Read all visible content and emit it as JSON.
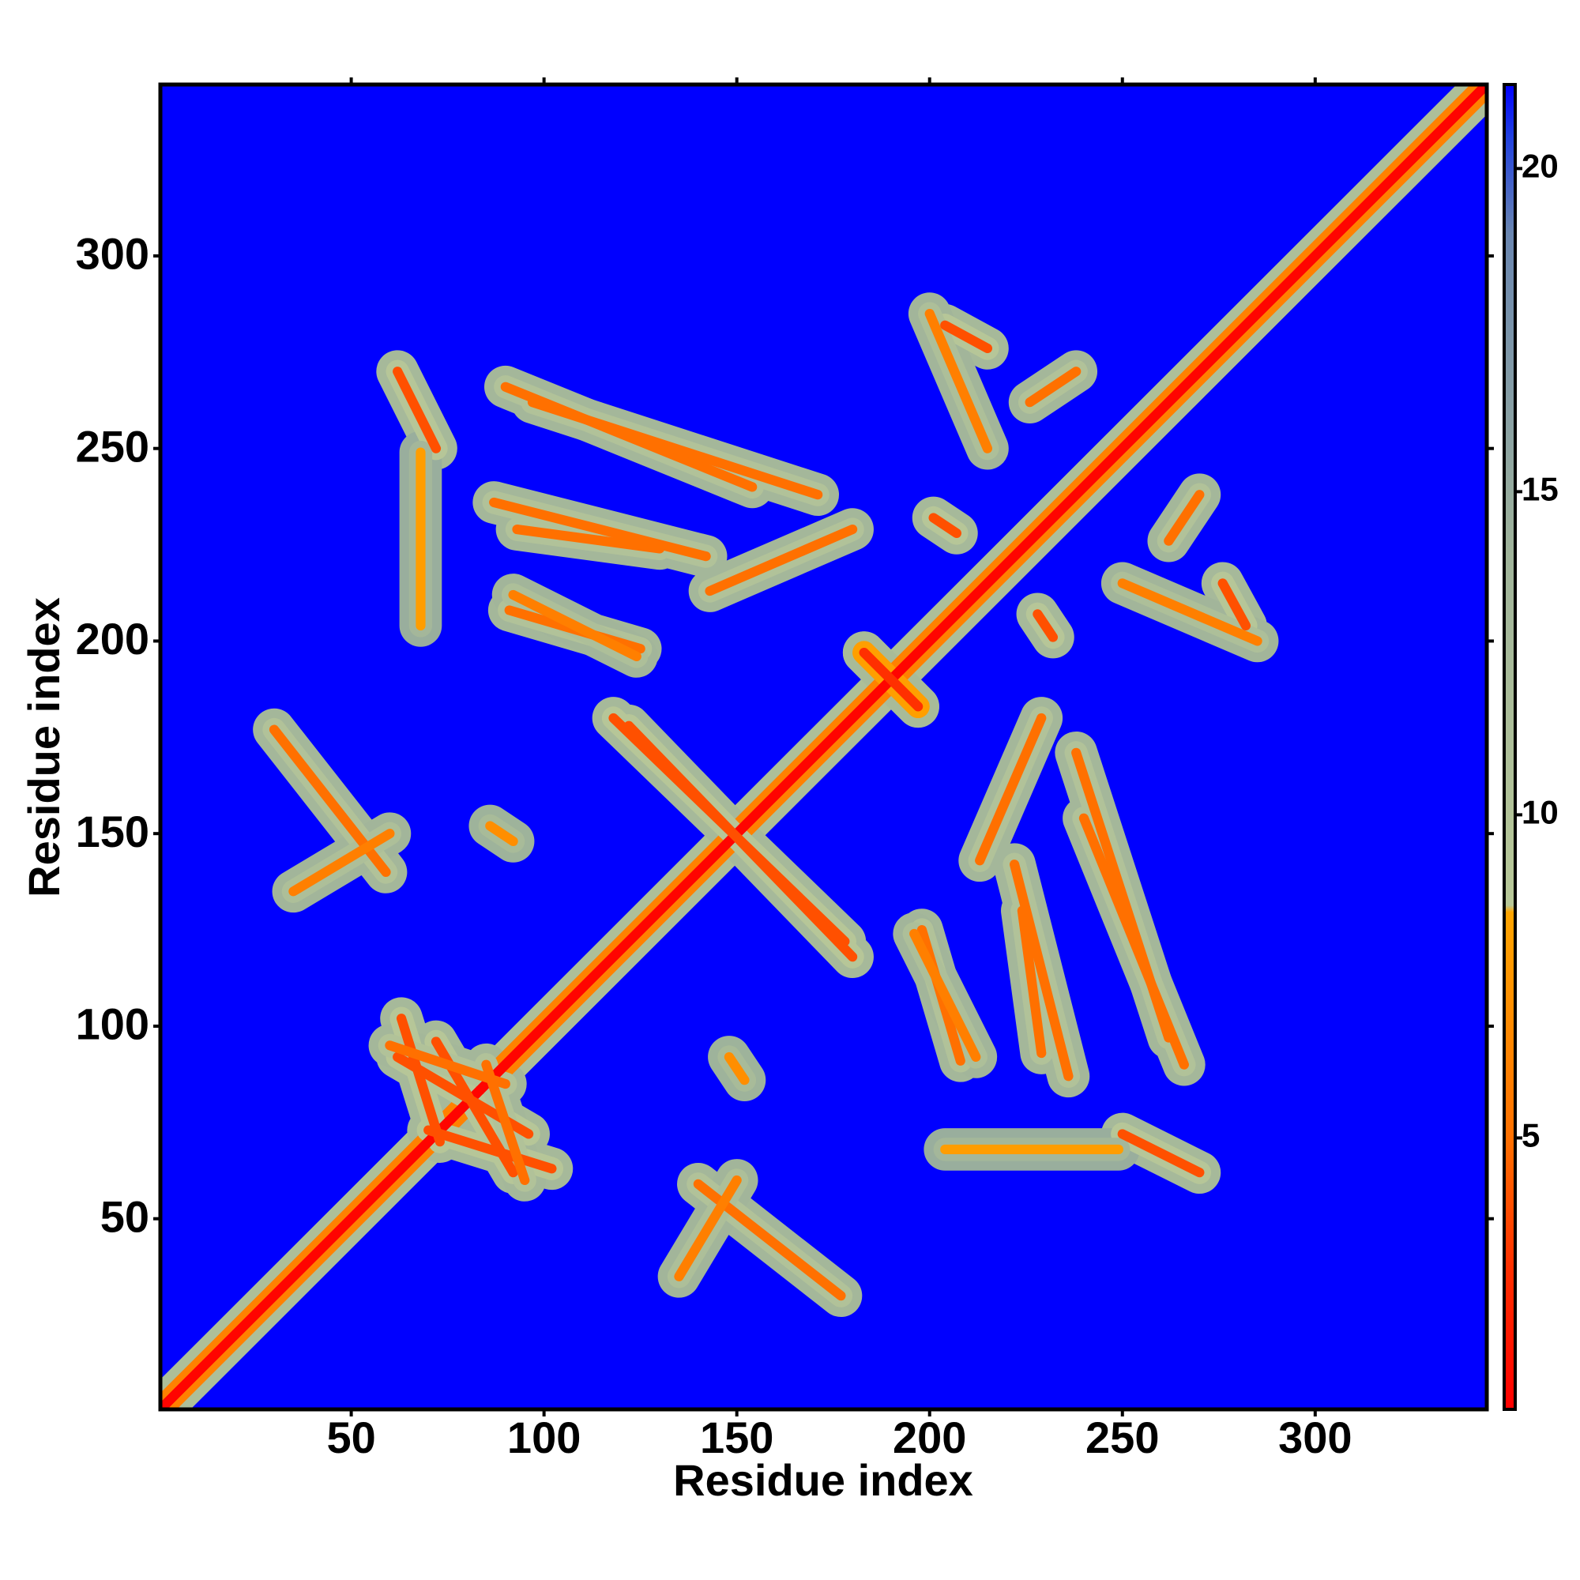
{
  "chart_data": {
    "type": "contact_map",
    "xlabel": "Residue index",
    "ylabel": "Residue index",
    "xlim": [
      0.5,
      344.5
    ],
    "ylim": [
      0.5,
      344.5
    ],
    "xticks": [
      50,
      100,
      150,
      200,
      250,
      300
    ],
    "yticks": [
      50,
      100,
      150,
      200,
      250,
      300
    ],
    "clim": [
      0.8,
      21.3
    ],
    "cticks": [
      5,
      10,
      15,
      20
    ],
    "colorscale": [
      [
        0.8,
        "#ff0000"
      ],
      [
        3,
        "#ff3000"
      ],
      [
        5,
        "#ff7000"
      ],
      [
        8.5,
        "#ffa500"
      ],
      [
        8.6,
        "#b8c898"
      ],
      [
        14,
        "#a0b49a"
      ],
      [
        19,
        "#6a86b0"
      ],
      [
        20.5,
        "#2040e0"
      ],
      [
        21.3,
        "#0000ff"
      ]
    ],
    "symmetric": true,
    "contacts": [
      {
        "from": [
          1,
          1
        ],
        "to": [
          344,
          344
        ],
        "value": 1
      },
      {
        "from": [
          118,
          180
        ],
        "to": [
          178,
          122
        ],
        "value": 4
      },
      {
        "from": [
          183,
          197
        ],
        "to": [
          197,
          183
        ],
        "value": 3
      },
      {
        "from": [
          63,
          102
        ],
        "to": [
          73,
          70
        ],
        "value": 4
      },
      {
        "from": [
          72,
          96
        ],
        "to": [
          92,
          62
        ],
        "value": 4
      },
      {
        "from": [
          60,
          95
        ],
        "to": [
          90,
          85
        ],
        "value": 5
      },
      {
        "from": [
          30,
          177
        ],
        "to": [
          59,
          140
        ],
        "value": 5
      },
      {
        "from": [
          86,
          152
        ],
        "to": [
          92,
          148
        ],
        "value": 7
      },
      {
        "from": [
          35,
          135
        ],
        "to": [
          60,
          150
        ],
        "value": 6
      },
      {
        "from": [
          90,
          266
        ],
        "to": [
          154,
          240
        ],
        "value": 5
      },
      {
        "from": [
          93,
          229
        ],
        "to": [
          130,
          224
        ],
        "value": 5
      },
      {
        "from": [
          91,
          208
        ],
        "to": [
          125,
          198
        ],
        "value": 5
      },
      {
        "from": [
          143,
          213
        ],
        "to": [
          180,
          229
        ],
        "value": 5
      },
      {
        "from": [
          62,
          270
        ],
        "to": [
          72,
          250
        ],
        "value": 4
      },
      {
        "from": [
          204,
          282
        ],
        "to": [
          215,
          276
        ],
        "value": 4
      },
      {
        "from": [
          201,
          232
        ],
        "to": [
          207,
          228
        ],
        "value": 4
      },
      {
        "from": [
          226,
          262
        ],
        "to": [
          238,
          270
        ],
        "value": 5
      },
      {
        "from": [
          142,
          222
        ],
        "to": [
          87,
          236
        ],
        "value": 5
      },
      {
        "from": [
          171,
          238
        ],
        "to": [
          97,
          262
        ],
        "value": 5
      },
      {
        "from": [
          124,
          196
        ],
        "to": [
          92,
          212
        ],
        "value": 6
      },
      {
        "from": [
          68,
          204
        ],
        "to": [
          68,
          249
        ],
        "value": 8
      },
      {
        "from": [
          200,
          285
        ],
        "to": [
          215,
          250
        ],
        "value": 6
      }
    ]
  }
}
